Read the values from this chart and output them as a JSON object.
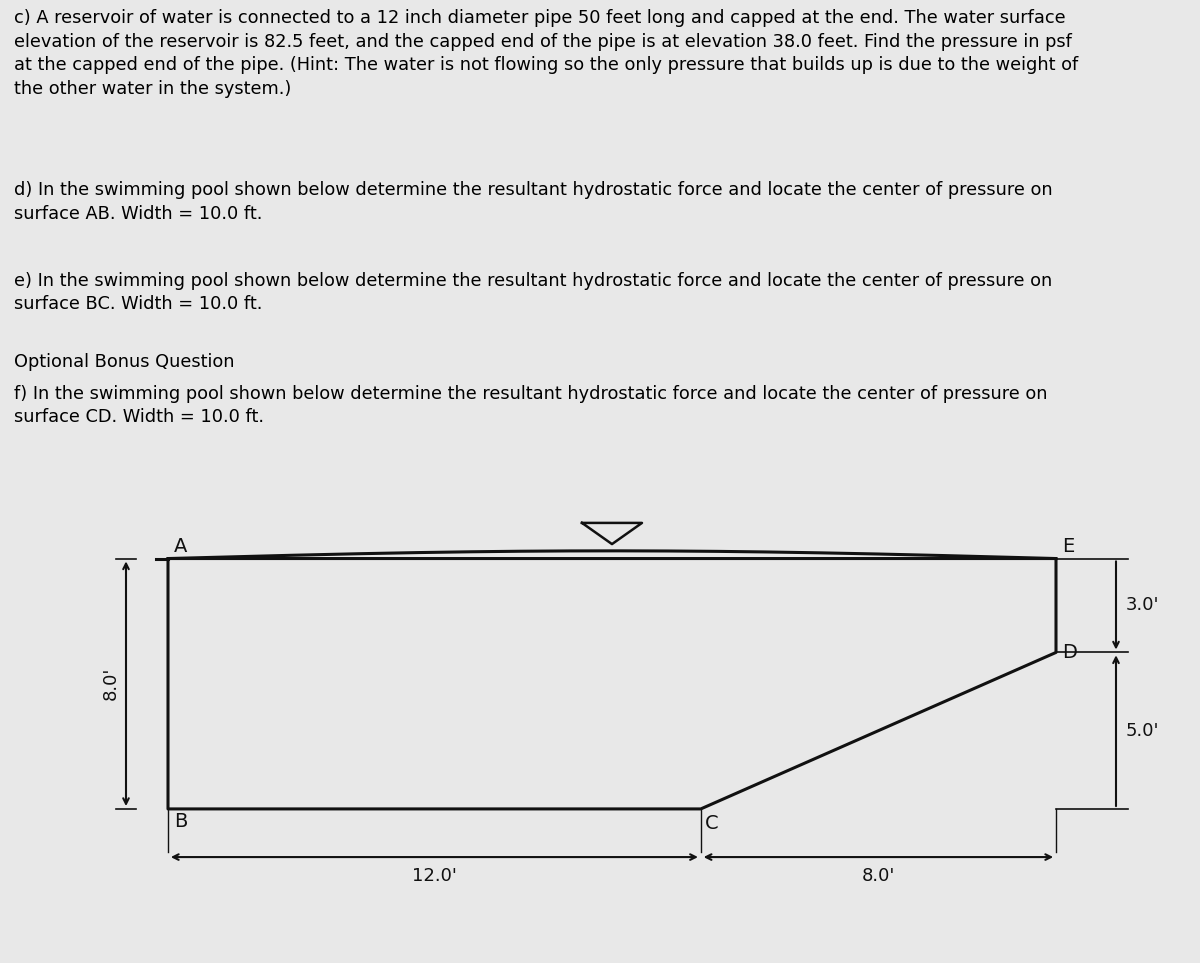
{
  "text_c": "c) A reservoir of water is connected to a 12 inch diameter pipe 50 feet long and capped at the end. The water surface\nelevation of the reservoir is 82.5 feet, and the capped end of the pipe is at elevation 38.0 feet. Find the pressure in psf\nat the capped end of the pipe. (Hint: The water is not flowing so the only pressure that builds up is due to the weight of\nthe other water in the system.)",
  "text_d": "d) In the swimming pool shown below determine the resultant hydrostatic force and locate the center of pressure on\nsurface AB. Width = 10.0 ft.",
  "text_e": "e) In the swimming pool shown below determine the resultant hydrostatic force and locate the center of pressure on\nsurface BC. Width = 10.0 ft.",
  "text_optional": "Optional Bonus Question",
  "text_f": "f) In the swimming pool shown below determine the resultant hydrostatic force and locate the center of pressure on\nsurface CD. Width = 10.0 ft.",
  "bg_text": "#e8e8e8",
  "bg_diagram": "#bfae96",
  "line_color": "#111111",
  "text_fs": 12.8,
  "label_fs": 14,
  "dim_fs": 13
}
